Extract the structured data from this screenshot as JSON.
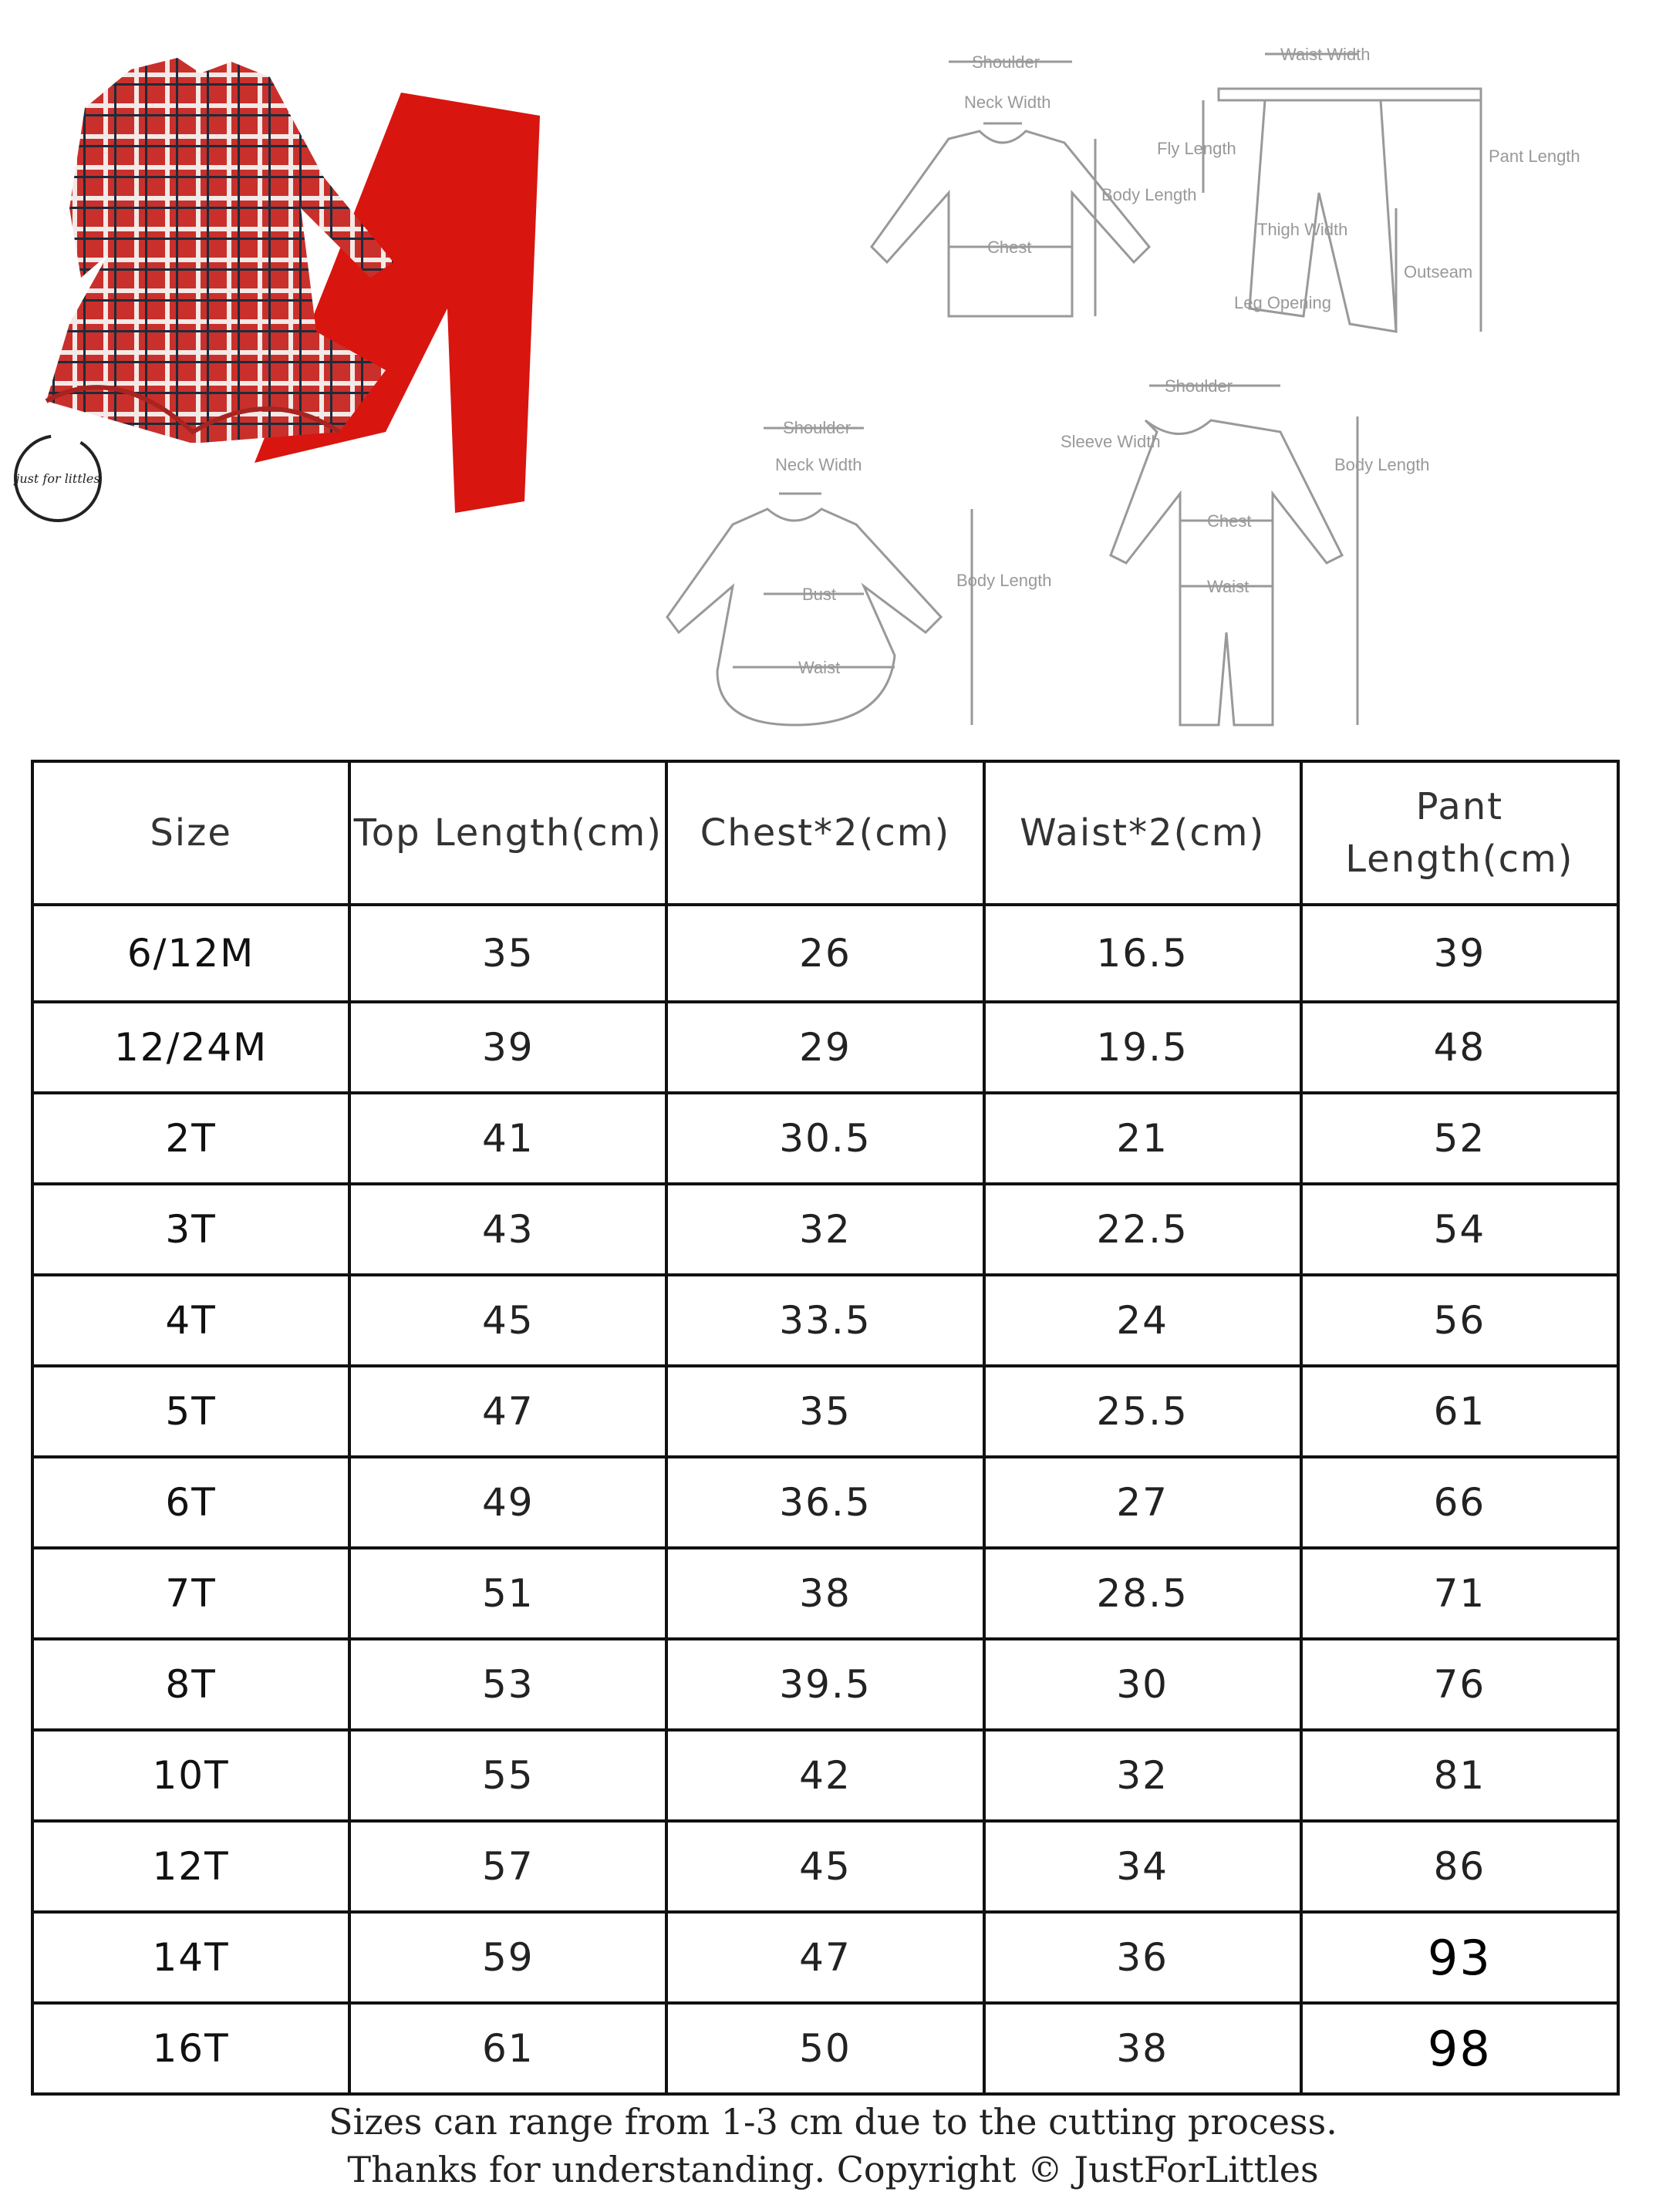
{
  "diagram_labels": {
    "top_shirt": [
      "Shoulder",
      "Neck Width",
      "Body Length",
      "Chest"
    ],
    "pants": [
      "Waist Width",
      "Fly Length",
      "Pant Length",
      "Thigh Width",
      "Outseam",
      "Leg Opening"
    ],
    "dress": [
      "Shoulder",
      "Neck Width",
      "Body Length",
      "Bust",
      "Waist"
    ],
    "romper": [
      "Shoulder",
      "Sleeve Width",
      "Body Length",
      "Chest",
      "Waist"
    ]
  },
  "logo_text": "just for littles",
  "table": {
    "headers": [
      "Size",
      "Top Length(cm)",
      "Chest*2(cm)",
      "Waist*2(cm)",
      "Pant Length(cm)"
    ],
    "rows": [
      [
        "6/12M",
        "35",
        "26",
        "16.5",
        "39"
      ],
      [
        "12/24M",
        "39",
        "29",
        "19.5",
        "48"
      ],
      [
        "2T",
        "41",
        "30.5",
        "21",
        "52"
      ],
      [
        "3T",
        "43",
        "32",
        "22.5",
        "54"
      ],
      [
        "4T",
        "45",
        "33.5",
        "24",
        "56"
      ],
      [
        "5T",
        "47",
        "35",
        "25.5",
        "61"
      ],
      [
        "6T",
        "49",
        "36.5",
        "27",
        "66"
      ],
      [
        "7T",
        "51",
        "38",
        "28.5",
        "71"
      ],
      [
        "8T",
        "53",
        "39.5",
        "30",
        "76"
      ],
      [
        "10T",
        "55",
        "42",
        "32",
        "81"
      ],
      [
        "12T",
        "57",
        "45",
        "34",
        "86"
      ],
      [
        "14T",
        "59",
        "47",
        "36",
        "93"
      ],
      [
        "16T",
        "61",
        "50",
        "38",
        "98"
      ]
    ]
  },
  "footer": {
    "line1": "Sizes can range from 1-3 cm due to the cutting process.",
    "line2": "Thanks for understanding. Copyright © JustForLittles"
  }
}
